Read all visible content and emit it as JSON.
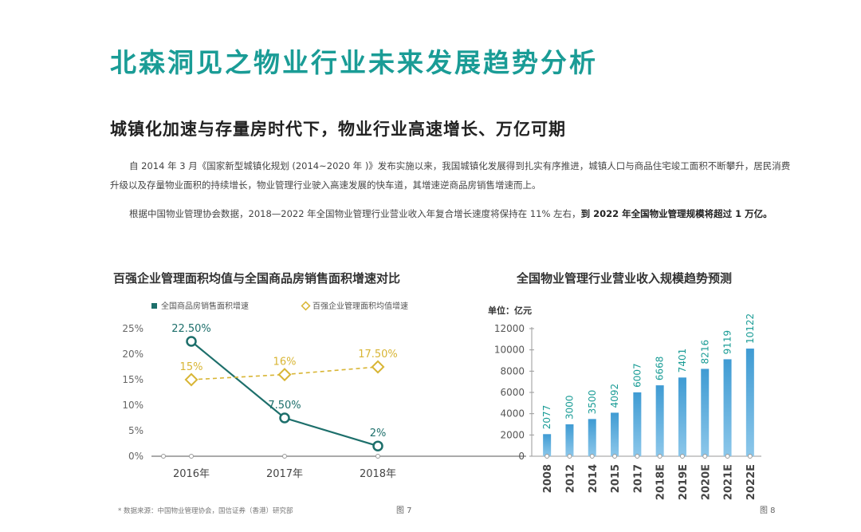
{
  "header": {
    "title": "北森洞见之物业行业未来发展趋势分析",
    "subtitle": "城镇化加速与存量房时代下，物业行业高速增长、万亿可期"
  },
  "paragraphs": {
    "p1": "自 2014 年 3 月《国家新型城镇化规划 (2014~2020 年 )》发布实施以来，我国城镇化发展得到扎实有序推进，城镇人口与商品住宅竣工面积不断攀升，居民消费升级以及存量物业面积的持续增长，物业管理行业驶入高速发展的快车道，其增速逆商品房销售增速而上。",
    "p2_lead": "根据中国物业管理协会数据，2018—2022 年全国物业管理行业营业收入年复合增长速度将保持在 11% 左右，",
    "p2_highlight": "到 2022 年全国物业管理规模将超过 1 万亿。"
  },
  "footnote": "* 数据来源：中国物业管理协会，国信证券（香港）研究部",
  "figure_labels": {
    "fig7": "图 7",
    "fig8": "图 8"
  },
  "colors": {
    "accent": "#1a9c96",
    "line1": "#1d6f6b",
    "line2": "#d8b534",
    "bar": "#3f9bd3"
  },
  "chart_data": [
    {
      "type": "line",
      "title": "百强企业管理面积均值与全国商品房销售面积增速对比",
      "categories": [
        "2016年",
        "2017年",
        "2018年"
      ],
      "yticks": [
        "25%",
        "20%",
        "15%",
        "10%",
        "5%",
        "0%"
      ],
      "ylim": [
        0,
        25
      ],
      "legend_position": "top",
      "series": [
        {
          "name": "全国商品房销售面积增速",
          "values": [
            22.5,
            7.5,
            2
          ],
          "labels": [
            "22.50%",
            "7.50%",
            "2%"
          ],
          "color": "#1d6f6b",
          "dashed": false
        },
        {
          "name": "百强企业管理面积均值增速",
          "values": [
            15,
            16,
            17.5
          ],
          "labels": [
            "15%",
            "16%",
            "17.50%"
          ],
          "color": "#d8b534",
          "dashed": true
        }
      ]
    },
    {
      "type": "bar",
      "title": "全国物业管理行业营业收入规模趋势预测",
      "unit_label": "单位：亿元",
      "categories": [
        "2008",
        "2012",
        "2014",
        "2015",
        "2017",
        "2018E",
        "2019E",
        "2020E",
        "2021E",
        "2022E"
      ],
      "values": [
        2077,
        3000,
        3500,
        4092,
        6007,
        6668,
        7401,
        8216,
        9119,
        10122
      ],
      "yticks": [
        "12000",
        "10000",
        "8000",
        "6000",
        "4000",
        "2000",
        "0"
      ],
      "ylim": [
        0,
        12000
      ]
    }
  ]
}
